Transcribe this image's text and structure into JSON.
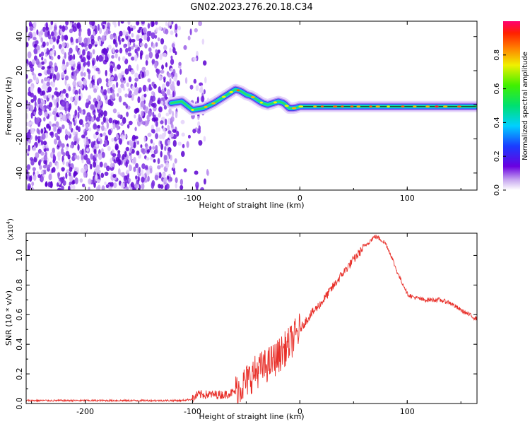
{
  "title": "GN02.2023.276.20.18.C34",
  "colors": {
    "snr_line": "#e8302a",
    "axis": "#000000"
  },
  "chart_data": [
    {
      "type": "heatmap",
      "xlabel": "Height of straight line (km)",
      "ylabel": "Frequency (Hz)",
      "xlim": [
        -255,
        165
      ],
      "ylim": [
        -50,
        49
      ],
      "x_ticks": [
        "-200",
        "-100",
        "0",
        "100"
      ],
      "y_ticks": [
        "40",
        "20",
        "0",
        "-20",
        "-40"
      ],
      "ridge": {
        "x": [
          -120,
          -110,
          -100,
          -90,
          -80,
          -70,
          -60,
          -55,
          -50,
          -45,
          -40,
          -35,
          -30,
          -25,
          -20,
          -15,
          -10,
          -5,
          0,
          50,
          100,
          165
        ],
        "freq": [
          1,
          2,
          -3,
          -2,
          1,
          5,
          9,
          8,
          6,
          5,
          3,
          1,
          0,
          1,
          2,
          1,
          -2,
          -2,
          -1,
          -1,
          -1,
          -1
        ]
      },
      "noise_region_x": [
        -255,
        -85
      ],
      "colorbar": {
        "label": "Normalized spectral amplitude",
        "ticks": [
          "0.0",
          "0.2",
          "0.4",
          "0.6",
          "0.8"
        ],
        "range": [
          0,
          1
        ],
        "colormap": "rainbow"
      }
    },
    {
      "type": "line",
      "xlabel": "Height of straight line (km)",
      "ylabel": "SNR (10 * v/v)",
      "multiplier": "(x10",
      "multiplier_exp": "4",
      "multiplier_close": ")",
      "xlim": [
        -255,
        165
      ],
      "ylim": [
        0,
        1.15
      ],
      "x_ticks": [
        "-200",
        "-100",
        "0",
        "100"
      ],
      "y_ticks": [
        "0.0",
        "0.2",
        "0.4",
        "0.6",
        "0.8",
        "1.0"
      ],
      "series": [
        {
          "x": [
            -255,
            -200,
            -150,
            -110,
            -100,
            -95,
            -85,
            -70,
            -60,
            -50,
            -40,
            -30,
            -20,
            -10,
            0,
            10,
            20,
            30,
            40,
            50,
            60,
            70,
            75,
            80,
            85,
            90,
            95,
            98,
            100,
            105,
            110,
            115,
            120,
            125,
            130,
            140,
            150,
            165
          ],
          "y": [
            0.02,
            0.02,
            0.02,
            0.02,
            0.03,
            0.06,
            0.06,
            0.06,
            0.08,
            0.15,
            0.22,
            0.26,
            0.32,
            0.4,
            0.5,
            0.6,
            0.68,
            0.78,
            0.88,
            0.97,
            1.06,
            1.13,
            1.11,
            1.08,
            1.0,
            0.9,
            0.82,
            0.78,
            0.74,
            0.72,
            0.71,
            0.7,
            0.7,
            0.7,
            0.7,
            0.68,
            0.63,
            0.57
          ]
        }
      ]
    }
  ]
}
